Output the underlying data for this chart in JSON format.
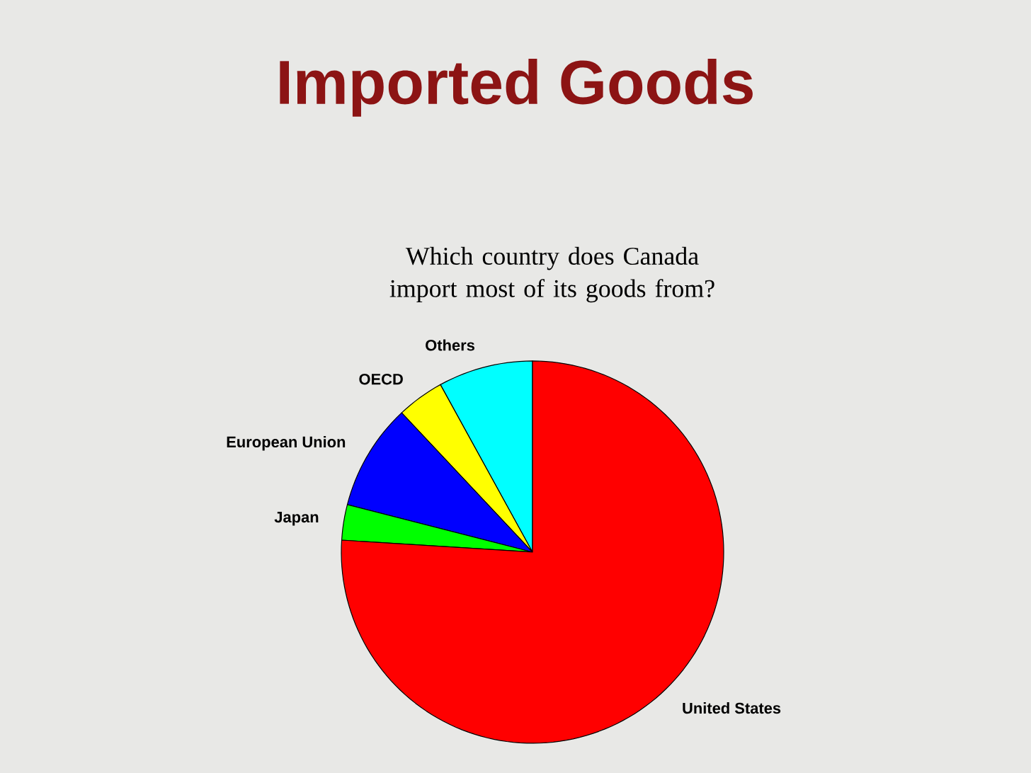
{
  "chart_data": {
    "type": "pie",
    "title": "Imported Goods",
    "subtitle": "Which country does Canada import most of its goods from?",
    "categories": [
      "Others",
      "OECD",
      "European Union",
      "Japan",
      "United States"
    ],
    "values": [
      8,
      4,
      9,
      3,
      76
    ],
    "colors": [
      "#00ffff",
      "#ffff00",
      "#0000ff",
      "#00ff00",
      "#ff0000"
    ]
  }
}
